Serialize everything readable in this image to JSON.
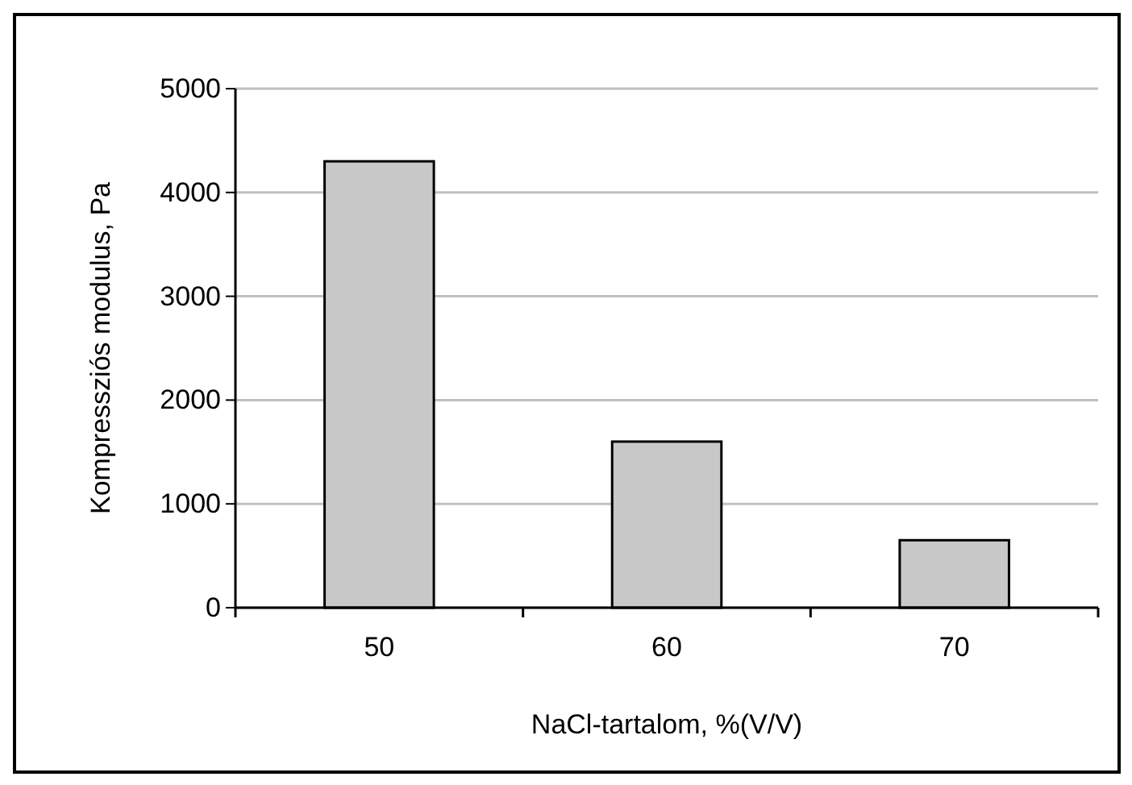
{
  "chart_data": {
    "type": "bar",
    "categories": [
      "50",
      "60",
      "70"
    ],
    "values": [
      4300,
      1600,
      650
    ],
    "color": "#c8c8c8",
    "xlabel": "NaCl-tartalom, %(V/V)",
    "ylabel": "Kompressziós modulus, Pa",
    "ylim": [
      0,
      5000
    ],
    "yticks": [
      0,
      1000,
      2000,
      3000,
      4000,
      5000
    ],
    "grid": "y"
  }
}
